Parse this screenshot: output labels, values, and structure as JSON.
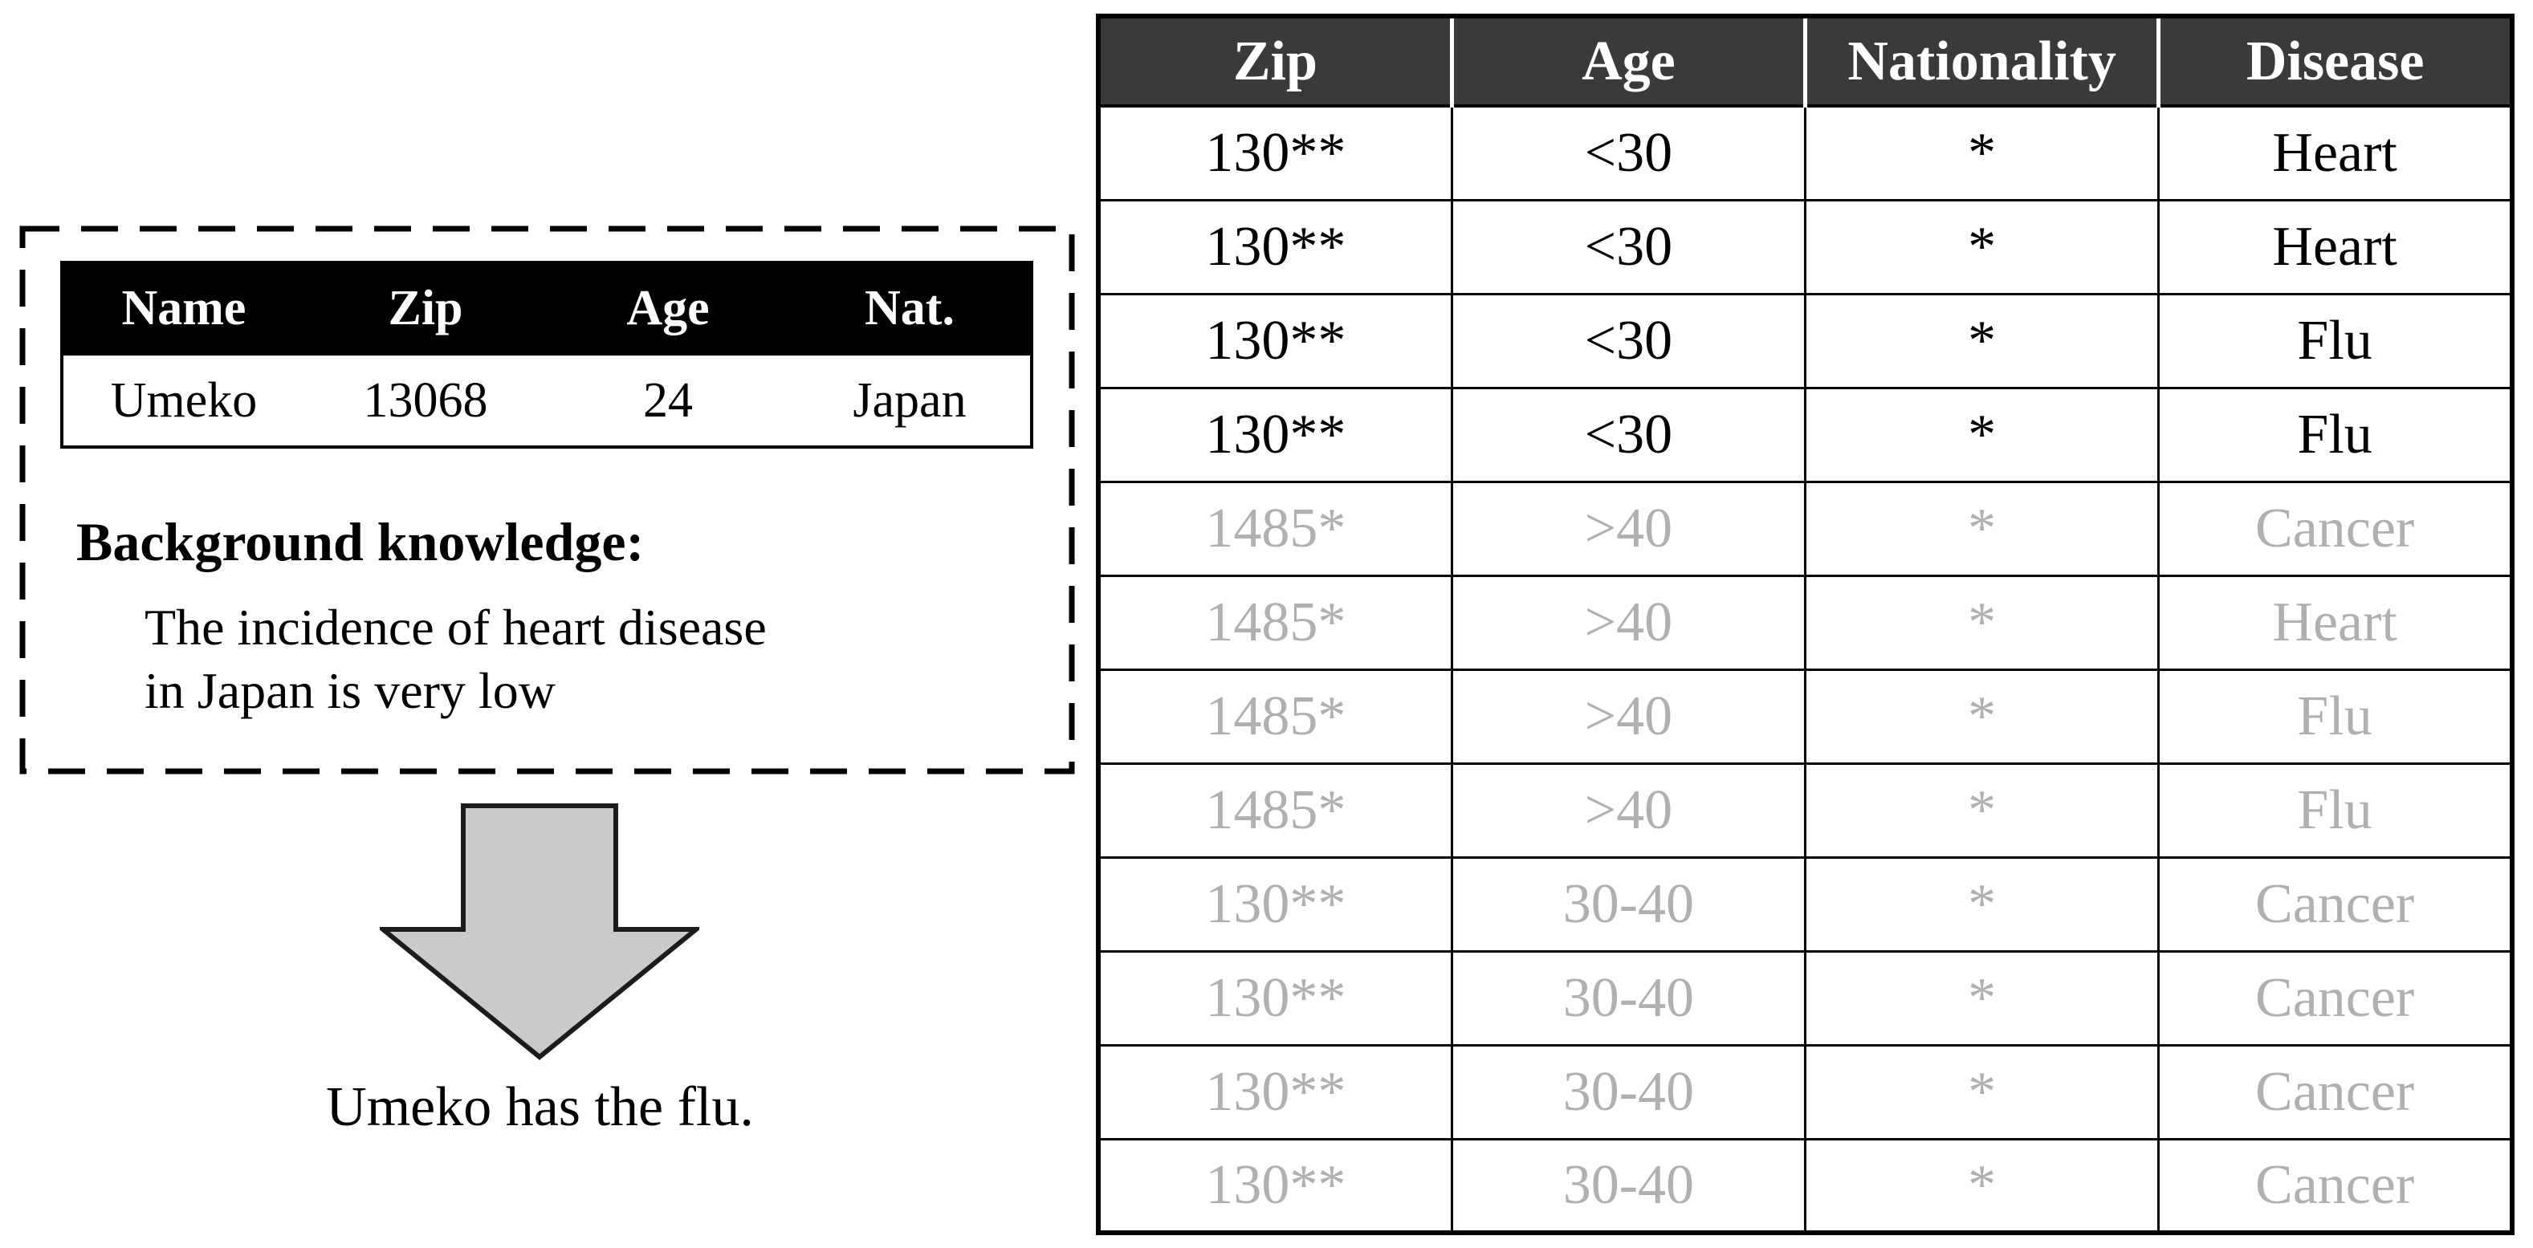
{
  "left_panel": {
    "identity_table": {
      "headers": [
        "Name",
        "Zip",
        "Age",
        "Nat."
      ],
      "rows": [
        [
          "Umeko",
          "13068",
          "24",
          "Japan"
        ]
      ]
    },
    "background_knowledge_label": "Background knowledge:",
    "background_knowledge_lines": [
      "The incidence of heart disease",
      "in Japan is very low"
    ],
    "conclusion": "Umeko has the flu."
  },
  "anonymized_table": {
    "headers": [
      "Zip",
      "Age",
      "Nationality",
      "Disease"
    ],
    "rows": [
      {
        "cells": [
          "130**",
          "<30",
          "*",
          "Heart"
        ],
        "dimmed": false
      },
      {
        "cells": [
          "130**",
          "<30",
          "*",
          "Heart"
        ],
        "dimmed": false
      },
      {
        "cells": [
          "130**",
          "<30",
          "*",
          "Flu"
        ],
        "dimmed": false
      },
      {
        "cells": [
          "130**",
          "<30",
          "*",
          "Flu"
        ],
        "dimmed": false
      },
      {
        "cells": [
          "1485*",
          ">40",
          "*",
          "Cancer"
        ],
        "dimmed": true
      },
      {
        "cells": [
          "1485*",
          ">40",
          "*",
          "Heart"
        ],
        "dimmed": true
      },
      {
        "cells": [
          "1485*",
          ">40",
          "*",
          "Flu"
        ],
        "dimmed": true
      },
      {
        "cells": [
          "1485*",
          ">40",
          "*",
          "Flu"
        ],
        "dimmed": true
      },
      {
        "cells": [
          "130**",
          "30-40",
          "*",
          "Cancer"
        ],
        "dimmed": true
      },
      {
        "cells": [
          "130**",
          "30-40",
          "*",
          "Cancer"
        ],
        "dimmed": true
      },
      {
        "cells": [
          "130**",
          "30-40",
          "*",
          "Cancer"
        ],
        "dimmed": true
      },
      {
        "cells": [
          "130**",
          "30-40",
          "*",
          "Cancer"
        ],
        "dimmed": true
      }
    ]
  },
  "colors": {
    "anon_header_bg": "#3a3a3a",
    "identity_header_bg": "#000000",
    "dimmed_text": "#b0b0b0",
    "arrow_fill": "#cacaca",
    "arrow_stroke": "#1c1c1c",
    "border": "#000000"
  }
}
